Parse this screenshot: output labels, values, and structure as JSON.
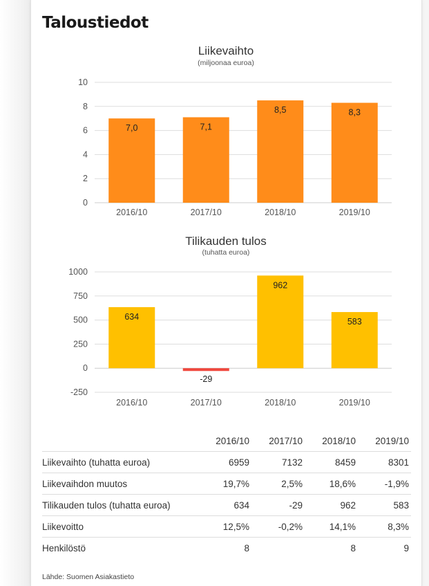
{
  "page": {
    "heading": "Taloustiedot"
  },
  "chart_data": [
    {
      "type": "bar",
      "title": "Liikevaihto",
      "subtitle": "(miljoonaa euroa)",
      "categories": [
        "2016/10",
        "2017/10",
        "2018/10",
        "2019/10"
      ],
      "values": [
        7.0,
        7.1,
        8.5,
        8.3
      ],
      "value_labels": [
        "7,0",
        "7,1",
        "8,5",
        "8,3"
      ],
      "ylim": [
        0,
        10
      ],
      "yticks": [
        0,
        2,
        4,
        6,
        8,
        10
      ],
      "ytick_labels": [
        "0",
        "2",
        "4",
        "6",
        "8",
        "10"
      ],
      "grid": true,
      "colors": {
        "bar": "#ff8c1a",
        "grid": "#dddddd",
        "axis": "#cccccc"
      }
    },
    {
      "type": "bar",
      "title": "Tilikauden tulos",
      "subtitle": "(tuhatta euroa)",
      "categories": [
        "2016/10",
        "2017/10",
        "2018/10",
        "2019/10"
      ],
      "values": [
        634,
        -29,
        962,
        583
      ],
      "value_labels": [
        "634",
        "-29",
        "962",
        "583"
      ],
      "ylim": [
        -250,
        1000
      ],
      "yticks": [
        -250,
        0,
        250,
        500,
        750,
        1000
      ],
      "ytick_labels": [
        "-250",
        "0",
        "250",
        "500",
        "750",
        "1000"
      ],
      "grid": true,
      "colors": {
        "bar": "#ffc000",
        "negative": "#f0483e",
        "grid": "#dddddd",
        "axis": "#cccccc"
      }
    }
  ],
  "table": {
    "headers": [
      "",
      "2016/10",
      "2017/10",
      "2018/10",
      "2019/10"
    ],
    "rows": [
      [
        "Liikevaihto (tuhatta euroa)",
        "6959",
        "7132",
        "8459",
        "8301"
      ],
      [
        "Liikevaihdon muutos",
        "19,7%",
        "2,5%",
        "18,6%",
        "-1,9%"
      ],
      [
        "Tilikauden tulos (tuhatta euroa)",
        "634",
        "-29",
        "962",
        "583"
      ],
      [
        "Liikevoitto",
        "12,5%",
        "-0,2%",
        "14,1%",
        "8,3%"
      ],
      [
        "Henkilöstö",
        "8",
        "",
        "8",
        "9"
      ]
    ]
  },
  "source": "Lähde: Suomen Asiakastieto"
}
